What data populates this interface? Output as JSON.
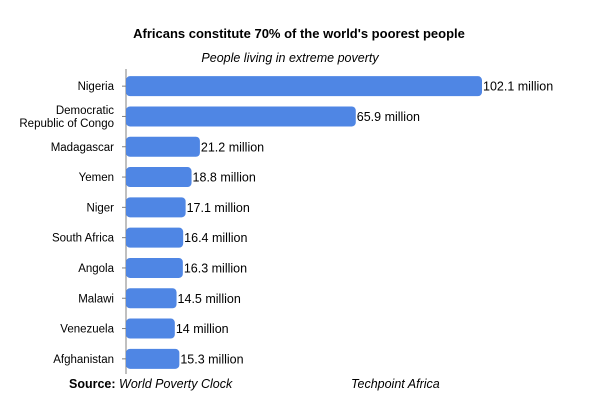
{
  "chart_data": {
    "type": "bar",
    "orientation": "horizontal",
    "title": "Africans constitute 70% of the world's  poorest people",
    "subtitle": "People living in extreme poverty",
    "categories": [
      "Nigeria",
      "Democratic Republic of Congo",
      "Madagascar",
      "Yemen",
      "Niger",
      "South Africa",
      "Angola",
      "Malawi",
      "Venezuela",
      "Afghanistan"
    ],
    "category_lines": [
      [
        "Nigeria"
      ],
      [
        "Democratic",
        "Republic of Congo"
      ],
      [
        "Madagascar"
      ],
      [
        "Yemen"
      ],
      [
        "Niger"
      ],
      [
        "South Africa"
      ],
      [
        "Angola"
      ],
      [
        "Malawi"
      ],
      [
        "Venezuela"
      ],
      [
        "Afghanistan"
      ]
    ],
    "values": [
      102.1,
      65.9,
      21.2,
      18.8,
      17.1,
      16.4,
      16.3,
      14.5,
      14,
      15.3
    ],
    "data_labels": [
      "102.1 million",
      "65.9 million",
      "21.2 million",
      "18.8 million",
      "17.1 million",
      "16.4 million",
      "16.3 million",
      "14.5 million",
      "14 million",
      "15.3 million"
    ],
    "bar_color": "#4f86e4",
    "grid": false
  },
  "footer": {
    "source_label": "Source:",
    "source_text": "World Poverty Clock",
    "brand": "Techpoint Africa"
  }
}
